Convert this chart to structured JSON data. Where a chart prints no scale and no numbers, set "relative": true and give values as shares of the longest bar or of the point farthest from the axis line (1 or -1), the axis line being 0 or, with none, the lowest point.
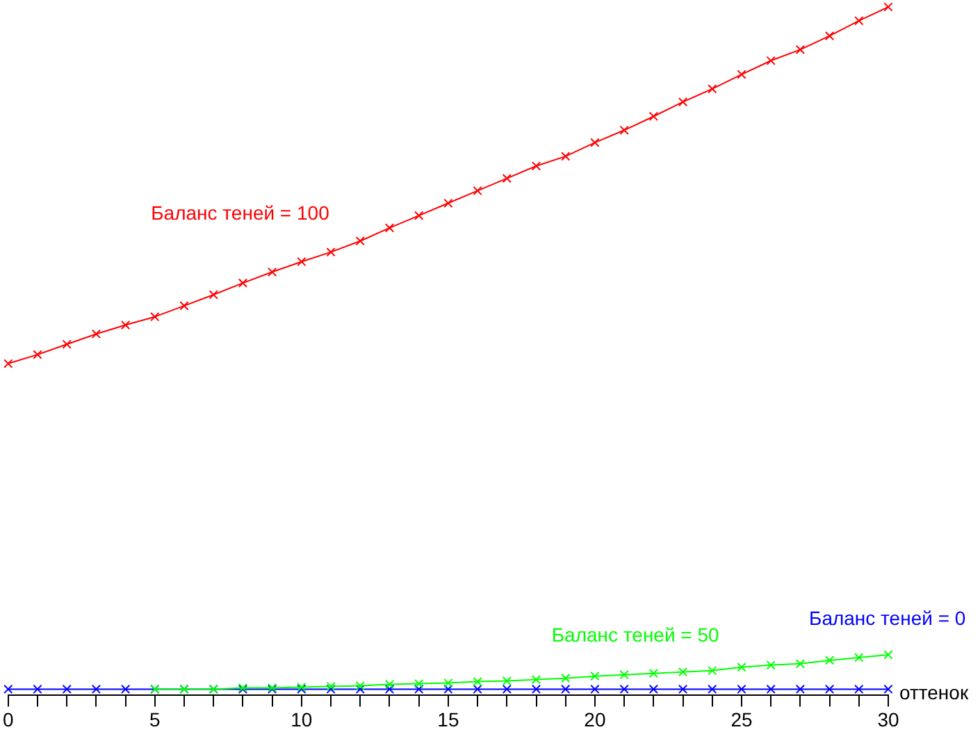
{
  "chart_data": {
    "type": "line",
    "relative": true,
    "xlabel": "оттенок",
    "x": [
      0,
      1,
      2,
      3,
      4,
      5,
      6,
      7,
      8,
      9,
      10,
      11,
      12,
      13,
      14,
      15,
      16,
      17,
      18,
      19,
      20,
      21,
      22,
      23,
      24,
      25,
      26,
      27,
      28,
      29,
      30
    ],
    "xlim": [
      0,
      30
    ],
    "xticks": [
      0,
      {
        "value": 1,
        "label": null
      },
      {
        "value": 2,
        "label": null
      },
      {
        "value": 3,
        "label": null
      },
      {
        "value": 4,
        "label": null
      },
      5,
      {
        "value": 6,
        "label": null
      },
      {
        "value": 7,
        "label": null
      },
      {
        "value": 8,
        "label": null
      },
      {
        "value": 9,
        "label": null
      },
      10,
      {
        "value": 11,
        "label": null
      },
      {
        "value": 12,
        "label": null
      },
      {
        "value": 13,
        "label": null
      },
      {
        "value": 14,
        "label": null
      },
      15,
      {
        "value": 16,
        "label": null
      },
      {
        "value": 17,
        "label": null
      },
      {
        "value": 18,
        "label": null
      },
      {
        "value": 19,
        "label": null
      },
      20,
      {
        "value": 21,
        "label": null
      },
      {
        "value": 22,
        "label": null
      },
      {
        "value": 23,
        "label": null
      },
      {
        "value": 24,
        "label": null
      },
      25,
      {
        "value": 26,
        "label": null
      },
      {
        "value": 27,
        "label": null
      },
      {
        "value": 28,
        "label": null
      },
      {
        "value": 29,
        "label": null
      },
      30
    ],
    "marker": "cross",
    "legend": false,
    "grid": false,
    "series": [
      {
        "name": "Баланс теней = 100",
        "color": "#ff0000",
        "values": [
          0.482,
          0.495,
          0.51,
          0.525,
          0.538,
          0.55,
          0.566,
          0.582,
          0.599,
          0.615,
          0.63,
          0.644,
          0.66,
          0.679,
          0.697,
          0.715,
          0.733,
          0.751,
          0.769,
          0.783,
          0.803,
          0.821,
          0.841,
          0.862,
          0.881,
          0.902,
          0.922,
          0.938,
          0.958,
          0.98,
          1
        ]
      },
      {
        "name": "Баланс теней = 50",
        "color": "#00ff00",
        "values": [
          null,
          null,
          null,
          null,
          null,
          0.009,
          0.009,
          0.009,
          0.011,
          0.011,
          0.012,
          0.013,
          0.014,
          0.016,
          0.017,
          0.018,
          0.02,
          0.021,
          0.023,
          0.025,
          0.028,
          0.03,
          0.032,
          0.034,
          0.036,
          0.041,
          0.044,
          0.046,
          0.051,
          0.055,
          0.059
        ]
      },
      {
        "name": "Баланс теней = 0",
        "color": "#0000ff",
        "values": [
          0.009,
          0.009,
          0.009,
          0.009,
          0.009,
          0.009,
          0.009,
          0.009,
          0.009,
          0.009,
          0.009,
          0.009,
          0.009,
          0.009,
          0.009,
          0.009,
          0.009,
          0.009,
          0.009,
          0.009,
          0.009,
          0.009,
          0.009,
          0.009,
          0.009,
          0.009,
          0.009,
          0.009,
          0.009,
          0.009,
          0.009
        ]
      }
    ]
  }
}
